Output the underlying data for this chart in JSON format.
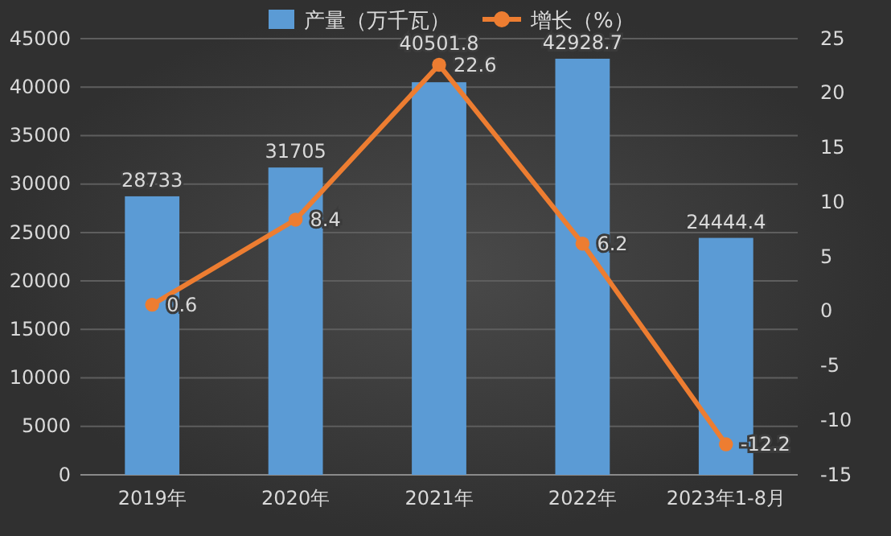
{
  "chart_data": {
    "type": "bar",
    "categories": [
      "2019年",
      "2020年",
      "2021年",
      "2022年",
      "2023年1-8月"
    ],
    "series": [
      {
        "name": "产量（万千瓦）",
        "color": "#5b9bd5",
        "values": [
          28733,
          31705,
          40501.8,
          42928.7,
          24444.4
        ]
      },
      {
        "name": "增长（%）",
        "type": "line",
        "axis": "y2",
        "color": "#ed7d31",
        "values": [
          0.6,
          8.4,
          22.6,
          6.2,
          -12.2
        ],
        "marker": "circle"
      }
    ],
    "ylim": [
      0,
      45000
    ],
    "yticks": [
      0,
      5000,
      10000,
      15000,
      20000,
      25000,
      30000,
      35000,
      40000,
      45000
    ],
    "y2lim": [
      -15,
      25
    ],
    "y2ticks": [
      -15,
      -10,
      -5,
      0,
      5,
      10,
      15,
      20,
      25
    ],
    "grid": "y",
    "legend": "top",
    "data_labels": true
  }
}
